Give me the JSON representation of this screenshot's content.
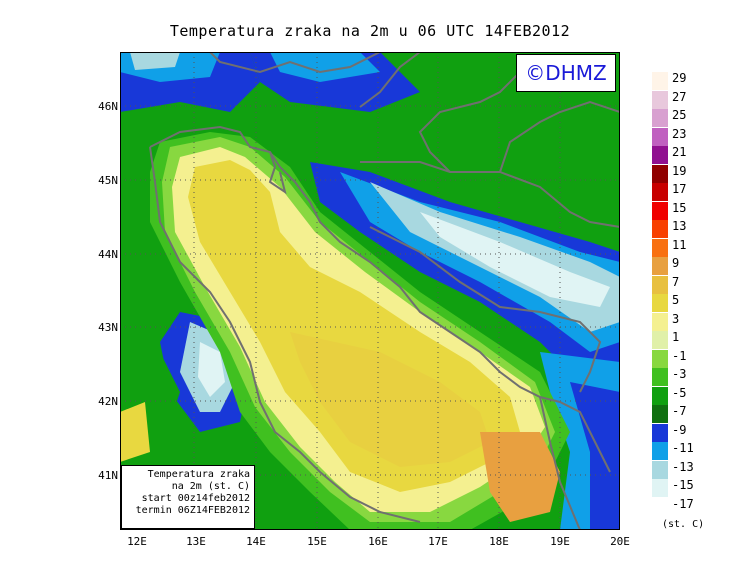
{
  "title": "Temperatura zraka na 2m u 06 UTC 14FEB2012",
  "logo_text": "©DHMZ",
  "info_box": {
    "line1": "Temperatura zraka",
    "line2": "na 2m (st. C)",
    "line3": "start 00z14feb2012",
    "line4": "termin 06Z14FEB2012"
  },
  "latitude_labels": [
    "46N",
    "45N",
    "44N",
    "43N",
    "42N",
    "41N"
  ],
  "longitude_labels": [
    "12E",
    "13E",
    "14E",
    "15E",
    "16E",
    "17E",
    "18E",
    "19E",
    "20E"
  ],
  "scale_units": "(st. C)",
  "scale": [
    {
      "label": "29",
      "color": "#fff4e8"
    },
    {
      "label": "27",
      "color": "#e8c8dc"
    },
    {
      "label": "25",
      "color": "#d8a0d0"
    },
    {
      "label": "23",
      "color": "#c060c0"
    },
    {
      "label": "21",
      "color": "#901090"
    },
    {
      "label": "19",
      "color": "#900000"
    },
    {
      "label": "17",
      "color": "#c80000"
    },
    {
      "label": "15",
      "color": "#f00000"
    },
    {
      "label": "13",
      "color": "#f84000"
    },
    {
      "label": "11",
      "color": "#f87010"
    },
    {
      "label": "9",
      "color": "#e8a040"
    },
    {
      "label": "7",
      "color": "#e8c040"
    },
    {
      "label": "5",
      "color": "#e8d840"
    },
    {
      "label": "3",
      "color": "#f4f090"
    },
    {
      "label": "1",
      "color": "#e0f0a8"
    },
    {
      "label": "-1",
      "color": "#88d840"
    },
    {
      "label": "-3",
      "color": "#40c020"
    },
    {
      "label": "-5",
      "color": "#10a010"
    },
    {
      "label": "-7",
      "color": "#107010"
    },
    {
      "label": "-9",
      "color": "#1838d8"
    },
    {
      "label": "-11",
      "color": "#10a0e8"
    },
    {
      "label": "-13",
      "color": "#a8d8e0"
    },
    {
      "label": "-15",
      "color": "#e0f4f4"
    },
    {
      "label": "-17",
      "color": "#ffffff"
    }
  ]
}
